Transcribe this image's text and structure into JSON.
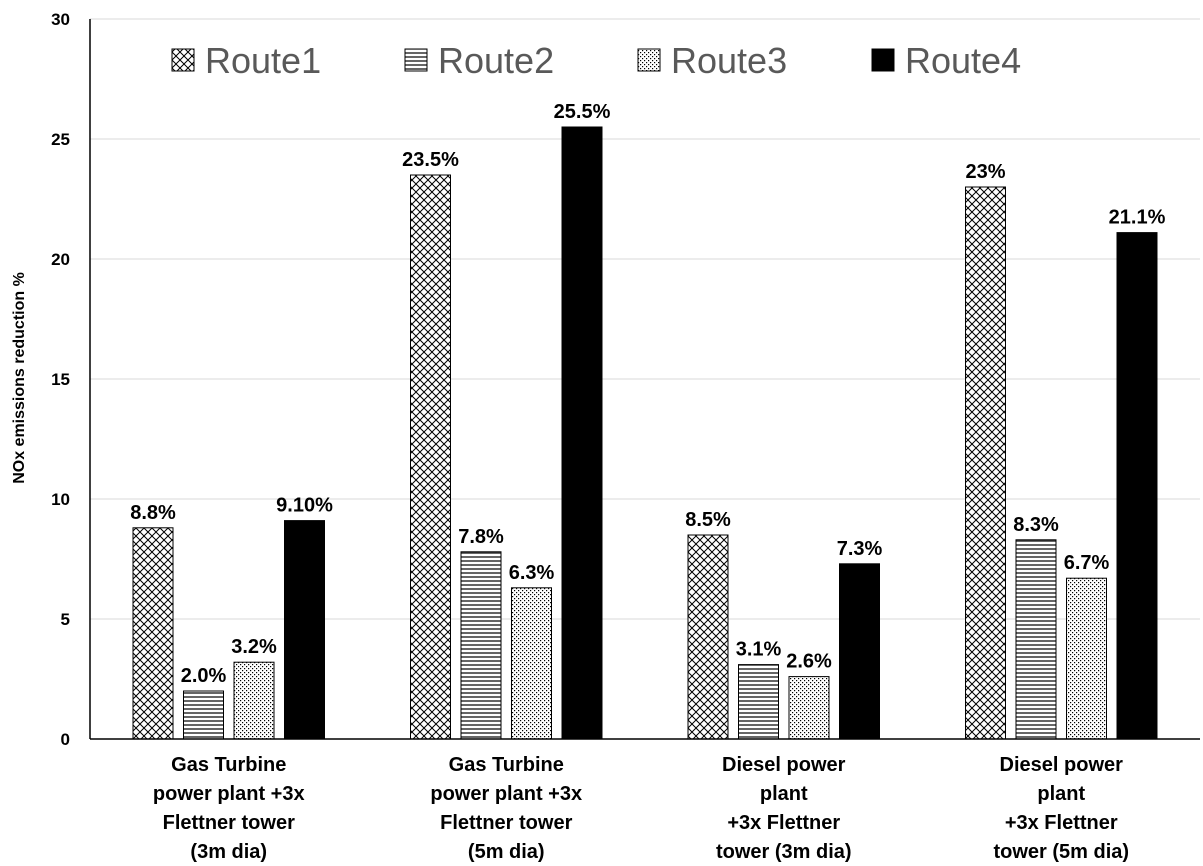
{
  "chart_data": {
    "type": "bar",
    "title": "",
    "xlabel": "",
    "ylabel": "NOx emissions reduction %",
    "ylim": [
      0,
      30
    ],
    "yticks": [
      "0",
      "5",
      "10",
      "15",
      "20",
      "25",
      "30"
    ],
    "grid": true,
    "legend_position": "top",
    "categories": [
      [
        "Gas Turbine",
        "power plant +3x",
        "Flettner tower",
        "(3m dia)"
      ],
      [
        "Gas Turbine",
        "power plant +3x",
        "Flettner tower",
        "(5m dia)"
      ],
      [
        "Diesel power",
        "plant",
        "+3x Flettner",
        "tower (3m dia)"
      ],
      [
        "Diesel power",
        "plant",
        "+3x Flettner",
        "tower (5m dia)"
      ]
    ],
    "series": [
      {
        "name": "Route1",
        "pattern": "crosshatch",
        "values": [
          8.8,
          23.5,
          8.5,
          23.0
        ],
        "labels": [
          "8.8%",
          "23.5%",
          "8.5%",
          "23%"
        ]
      },
      {
        "name": "Route2",
        "pattern": "horizontal",
        "values": [
          2.0,
          7.8,
          3.1,
          8.3
        ],
        "labels": [
          "2.0%",
          "7.8%",
          "3.1%",
          "8.3%"
        ]
      },
      {
        "name": "Route3",
        "pattern": "dots",
        "values": [
          3.2,
          6.3,
          2.6,
          6.7
        ],
        "labels": [
          "3.2%",
          "6.3%",
          "2.6%",
          "6.7%"
        ]
      },
      {
        "name": "Route4",
        "pattern": "solid",
        "values": [
          9.1,
          25.5,
          7.3,
          21.1
        ],
        "labels": [
          "9.10%",
          "25.5%",
          "7.3%",
          "21.1%"
        ]
      }
    ],
    "colors": {
      "solid": "#000000",
      "grid": "#d9d9d9",
      "axis": "#000000",
      "legend_text": "#595959"
    }
  }
}
